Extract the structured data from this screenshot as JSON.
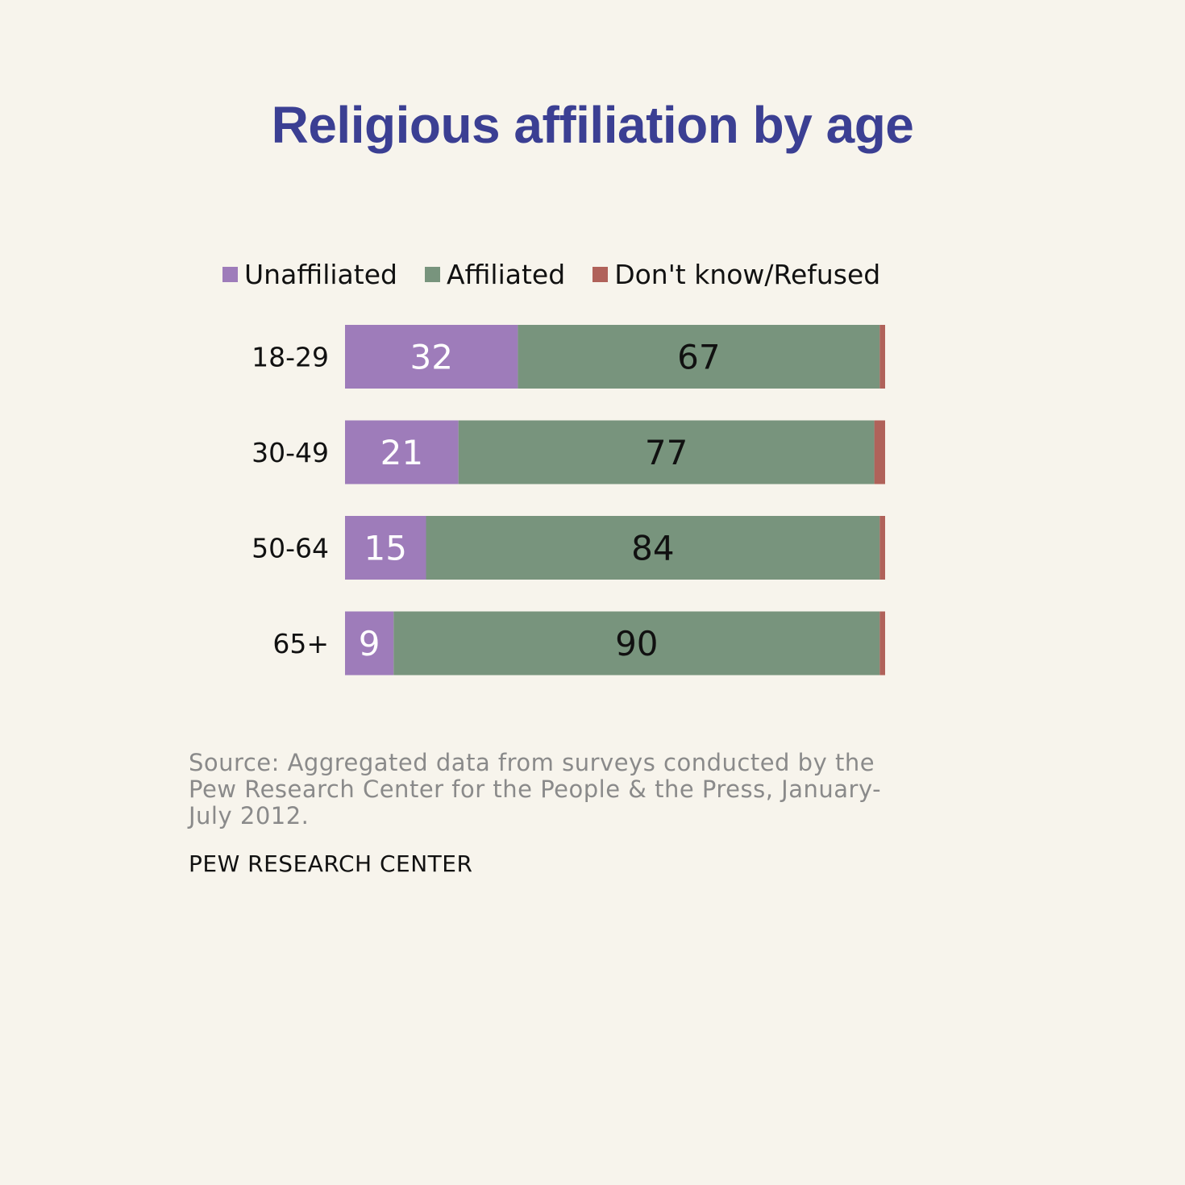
{
  "title": "Religious affiliation by age",
  "colors": {
    "unaffiliated": "#9e7cba",
    "affiliated": "#78947d",
    "dont_know": "#b0625a",
    "title": "#3b3f93",
    "background": "#f7f4ec"
  },
  "chart_data": {
    "type": "bar",
    "orientation": "horizontal",
    "stacked": true,
    "title": "Religious affiliation by age",
    "categories": [
      "18-29",
      "30-49",
      "50-64",
      "65+"
    ],
    "series": [
      {
        "name": "Unaffiliated",
        "values": [
          32,
          21,
          15,
          9
        ],
        "show_labels": true,
        "label_color": "#ffffff"
      },
      {
        "name": "Affiliated",
        "values": [
          67,
          77,
          84,
          90
        ],
        "show_labels": true,
        "label_color": "#111111"
      },
      {
        "name": "Don't know/Refused",
        "values": [
          1,
          2,
          1,
          1
        ],
        "show_labels": false
      }
    ],
    "legend": "top",
    "grid": false,
    "xlim": [
      0,
      100
    ]
  },
  "source": "Source: Aggregated data from surveys conducted by the Pew Research Center for the People & the Press, January-July 2012.",
  "footer": "PEW RESEARCH CENTER"
}
